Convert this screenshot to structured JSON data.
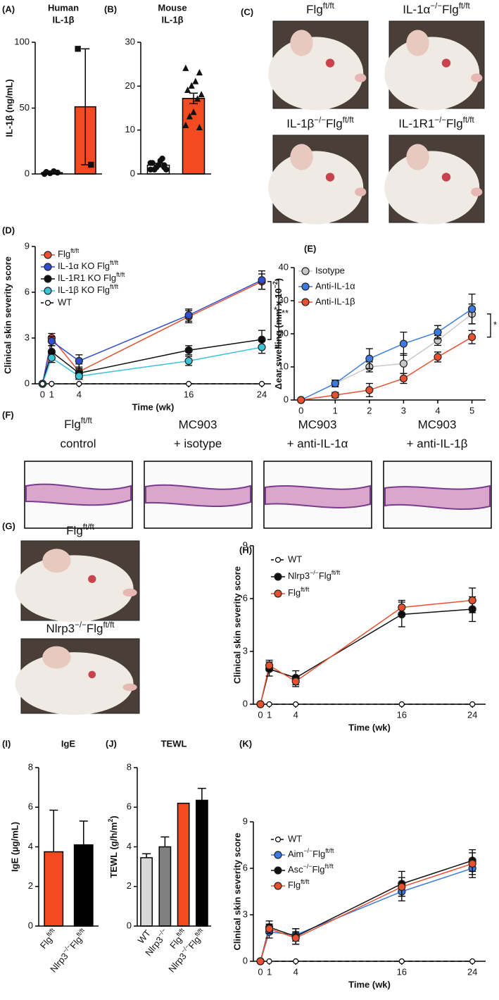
{
  "chart_data": [
    {
      "type": "bar",
      "label": "(A)",
      "title": [
        "Human",
        "IL-1β"
      ],
      "ylabel": "IL-1β (ng/mL)",
      "values": [
        1,
        51
      ],
      "errors": [
        1,
        44
      ],
      "colors": [
        "#ffffff",
        "#f24a21"
      ],
      "points": [
        [
          0,
          1,
          2,
          0.5,
          1.5
        ],
        [
          95,
          7
        ]
      ],
      "markers": [
        "circle",
        "square"
      ],
      "ylim": [
        0,
        100
      ],
      "yticks": [
        0,
        50,
        100
      ]
    },
    {
      "type": "bar",
      "label": "(B)",
      "title": [
        "Mouse",
        "IL-1β"
      ],
      "values": [
        2,
        17.2
      ],
      "errors": [
        0.4,
        1.2
      ],
      "colors": [
        "#ffffff",
        "#f24a21"
      ],
      "points": [
        [
          1,
          2,
          3,
          1.5,
          2.5,
          1,
          3.5,
          2,
          1,
          2.5,
          1.5
        ],
        [
          24,
          23,
          21,
          20,
          19,
          18,
          17,
          14,
          13,
          11,
          10.5
        ]
      ],
      "markers": [
        "circle",
        "triangle"
      ],
      "ylim": [
        0,
        30
      ],
      "yticks": [
        0,
        10,
        20,
        30
      ]
    },
    {
      "type": "line",
      "label": "(D)",
      "ylabel": "Clinical skin severity score",
      "xlabel": "Time (wk)",
      "x": [
        0,
        1,
        4,
        16,
        24
      ],
      "xlim": [
        -0.8,
        25
      ],
      "xticks": [
        0,
        1,
        4,
        16,
        24
      ],
      "ylim": [
        0,
        9
      ],
      "yticks": [
        0,
        3,
        6,
        9
      ],
      "legend": "upper left",
      "annotations": [
        "*",
        "**"
      ],
      "series": [
        {
          "name": [
            "Flg",
            "ft/ft"
          ],
          "color": "#e8502f",
          "values": [
            0,
            3.0,
            0.8,
            4.4,
            6.7
          ],
          "errors": [
            0,
            0.3,
            0.5,
            0.4,
            0.5
          ]
        },
        {
          "name": [
            "IL-1α KO Flg",
            "ft/ft"
          ],
          "color": "#2f4fd0",
          "values": [
            0,
            2.8,
            1.5,
            4.5,
            6.8
          ],
          "errors": [
            0,
            0.3,
            0.4,
            0.4,
            0.6
          ]
        },
        {
          "name": [
            "IL-1R1 KO Flg",
            "ft/ft"
          ],
          "color": "#111111",
          "values": [
            0,
            2.1,
            0.7,
            2.2,
            2.9
          ],
          "errors": [
            0,
            0.4,
            0.3,
            0.3,
            0.6
          ]
        },
        {
          "name": [
            "IL-1β KO Flg",
            "ft/ft"
          ],
          "color": "#3cc3d8",
          "values": [
            0,
            1.7,
            0.5,
            1.5,
            2.4
          ],
          "errors": [
            0,
            0.3,
            0.2,
            0.3,
            0.4
          ]
        },
        {
          "name": "WT",
          "color": "#111111",
          "marker": "open",
          "dash": true,
          "values": [
            0,
            0,
            0,
            0,
            0
          ]
        }
      ]
    },
    {
      "type": "line",
      "label": "(E)",
      "ylabel": [
        "Δear swelling (mm x 10",
        "−2",
        ")"
      ],
      "x": [
        0,
        1,
        2,
        3,
        4,
        5
      ],
      "xlim": [
        -0.2,
        5.4
      ],
      "xticks": [
        0,
        1,
        2,
        3,
        4,
        5
      ],
      "ylim": [
        0,
        40
      ],
      "yticks": [
        0,
        10,
        20,
        30,
        40
      ],
      "legend": "upper left",
      "annotations": [
        "*"
      ],
      "series": [
        {
          "name": "Isotype",
          "color": "#c8c8c8",
          "values": [
            0,
            5,
            10,
            11,
            18,
            26
          ],
          "errors": [
            0,
            1,
            1.5,
            3,
            1.5,
            3
          ]
        },
        {
          "name": "Anti-IL-1α",
          "color": "#3b7be0",
          "values": [
            0,
            5,
            12.5,
            17,
            20.5,
            27.5
          ],
          "errors": [
            0,
            1,
            3,
            3.5,
            2,
            4.5
          ]
        },
        {
          "name": "Anti-IL-1β",
          "color": "#e8502f",
          "values": [
            0,
            1.5,
            3,
            6.5,
            13,
            19
          ],
          "errors": [
            0,
            0.8,
            2,
            1.5,
            1.5,
            2
          ]
        }
      ]
    },
    {
      "type": "line",
      "label": "(H)",
      "ylabel": "Clinical skin severity score",
      "xlabel": "Time (wk)",
      "x": [
        0,
        1,
        4,
        16,
        24
      ],
      "xlim": [
        -0.8,
        25.5
      ],
      "xticks": [
        0,
        1,
        4,
        16,
        24
      ],
      "ylim": [
        0,
        9
      ],
      "yticks": [
        0,
        3,
        6,
        9
      ],
      "legend": "upper left",
      "series": [
        {
          "name": "WT",
          "color": "#111111",
          "marker": "open",
          "dash": true,
          "values": [
            0,
            0,
            0,
            0,
            0
          ]
        },
        {
          "name": [
            "Nlrp3",
            "−/−",
            "Flg",
            "ft/ft"
          ],
          "color": "#111111",
          "values": [
            0,
            2.0,
            1.5,
            5.1,
            5.4
          ],
          "errors": [
            0,
            0.4,
            0.4,
            0.7,
            0.7
          ]
        },
        {
          "name": [
            "Flg",
            "ft/ft"
          ],
          "color": "#e8502f",
          "values": [
            0,
            2.2,
            1.3,
            5.5,
            5.9
          ],
          "errors": [
            0,
            0.3,
            0.3,
            0.4,
            0.7
          ]
        }
      ]
    },
    {
      "type": "bar",
      "label": "(I)",
      "title": "IgE",
      "ylabel": "IgE (µg/mL)",
      "values": [
        3.75,
        4.1
      ],
      "errors": [
        2.1,
        1.2
      ],
      "colors": [
        "#f24a21",
        "#000000"
      ],
      "categories": [
        [
          "Flg",
          "ft/ft"
        ],
        [
          "Nlrp3",
          "−/−",
          "Flg",
          "ft/ft"
        ]
      ],
      "ylim": [
        0,
        8
      ],
      "yticks": [
        0,
        2,
        4,
        6,
        8
      ]
    },
    {
      "type": "bar",
      "label": "(J)",
      "title": "TEWL",
      "ylabel": [
        "TEWL (g/h/m",
        "2",
        ")"
      ],
      "values": [
        3.45,
        4.0,
        6.2,
        6.35
      ],
      "errors": [
        0.2,
        0.5,
        null,
        0.6
      ],
      "colors": [
        "#d9d9d9",
        "#808080",
        "#f24a21",
        "#000000"
      ],
      "categories": [
        "WT",
        [
          "Nlrp3",
          "−/−"
        ],
        [
          "Flg",
          "ft/ft"
        ],
        [
          "Nlrp3",
          "−/−",
          "Flg",
          "ft/ft"
        ]
      ],
      "ylim": [
        0,
        8
      ],
      "yticks": [
        0,
        2,
        4,
        6,
        8
      ]
    },
    {
      "type": "line",
      "label": "(K)",
      "ylabel": "Clinical skin severity score",
      "xlabel": "Time (wk)",
      "x": [
        0,
        1,
        4,
        16,
        24
      ],
      "xlim": [
        -0.8,
        25.5
      ],
      "xticks": [
        0,
        1,
        4,
        16,
        24
      ],
      "ylim": [
        0,
        9
      ],
      "yticks": [
        0,
        3,
        6,
        9
      ],
      "legend": "upper left",
      "series": [
        {
          "name": "WT",
          "color": "#111111",
          "marker": "open",
          "dash": true,
          "values": [
            0,
            0,
            0,
            0,
            0
          ]
        },
        {
          "name": [
            "Aim",
            "−/−",
            "Flg",
            "ft/ft"
          ],
          "color": "#3b7be0",
          "values": [
            0,
            1.9,
            1.7,
            4.5,
            6.0
          ],
          "errors": [
            0,
            0.4,
            0.4,
            0.6,
            0.6
          ]
        },
        {
          "name": [
            "Asc",
            "−/−",
            "Flg",
            "ft/ft"
          ],
          "color": "#111111",
          "values": [
            0,
            2.2,
            1.6,
            5.0,
            6.5
          ],
          "errors": [
            0,
            0.4,
            0.5,
            0.8,
            0.7
          ]
        },
        {
          "name": [
            "Flg",
            "ft/ft"
          ],
          "color": "#e8502f",
          "values": [
            0,
            2.1,
            1.5,
            4.8,
            6.3
          ],
          "errors": [
            0,
            0.3,
            0.4,
            0.6,
            0.7
          ]
        }
      ]
    }
  ],
  "images": [
    {
      "label": "(C)",
      "captions": [
        [
          "Flg",
          "ft/ft"
        ],
        [
          "IL-1α",
          "−/−",
          "Flg",
          "ft/ft"
        ],
        [
          "IL-1β",
          "−/−",
          "Flg",
          "ft/ft"
        ],
        [
          "IL-1R1",
          "−/−",
          "Flg",
          "ft/ft"
        ]
      ]
    },
    {
      "label": "(F)",
      "captions": [
        [
          [
            "Flg",
            "ft/ft"
          ],
          "control"
        ],
        [
          "MC903",
          "+ isotype"
        ],
        [
          "MC903",
          "+ anti-IL-1α"
        ],
        [
          "MC903",
          "+ anti-IL-1β"
        ]
      ]
    },
    {
      "label": "(G)",
      "captions": [
        [
          "Flg",
          "ft/ft"
        ],
        [
          "Nlrp3",
          "−/−",
          "Flg",
          "ft/ft"
        ]
      ]
    }
  ]
}
